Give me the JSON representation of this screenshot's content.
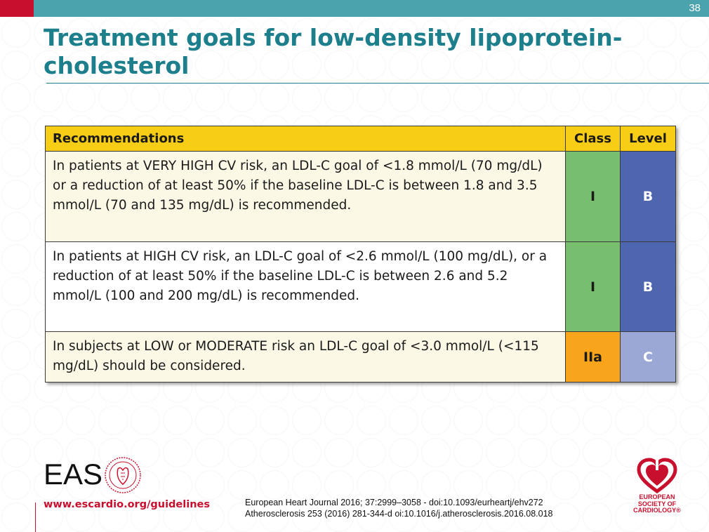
{
  "page_number": "38",
  "title": "Treatment goals for low-density lipoprotein-cholesterol",
  "table": {
    "headers": {
      "recommendations": "Recommendations",
      "class": "Class",
      "level": "Level"
    },
    "rows": [
      {
        "text": "In patients at VERY HIGH CV risk, an LDL-C goal of <1.8 mmol/L (70 mg/dL) or a reduction of at least 50% if the baseline LDL-C is between 1.8 and 3.5 mmol/L (70 and 135 mg/dL) is recommended.",
        "class": "I",
        "level": "B"
      },
      {
        "text": "In patients at HIGH CV risk, an LDL-C goal of <2.6 mmol/L (100 mg/dL), or a reduction of at least 50% if the baseline LDL-C is between 2.6 and 5.2 mmol/L (100 and 200 mg/dL) is recommended.",
        "class": "I",
        "level": "B"
      },
      {
        "text": "In subjects at LOW or MODERATE risk an LDL-C goal of <3.0 mmol/L (<115 mg/dL) should be considered.",
        "class": "IIa",
        "level": "C"
      }
    ]
  },
  "colors": {
    "header_yellow": "#f7cd16",
    "class_I": "#77bf6f",
    "class_IIa": "#f8a51b",
    "level_B": "#4e66b0",
    "level_C": "#9ba8d6",
    "title_teal": "#1e7f8c",
    "accent_red": "#c8102e"
  },
  "footer": {
    "eas_logo_text": "EAS",
    "website": "www.escardio.org/guidelines",
    "references": [
      "European Heart Journal 2016; 37:2999–3058 - doi:10.1093/eurheartj/ehv272",
      "Atherosclerosis 253 (2016) 281-344-d oi:10.1016/j.atherosclerosis.2016.08.018"
    ],
    "esc_logo_lines": [
      "EUROPEAN",
      "SOCIETY OF",
      "CARDIOLOGY®"
    ]
  }
}
